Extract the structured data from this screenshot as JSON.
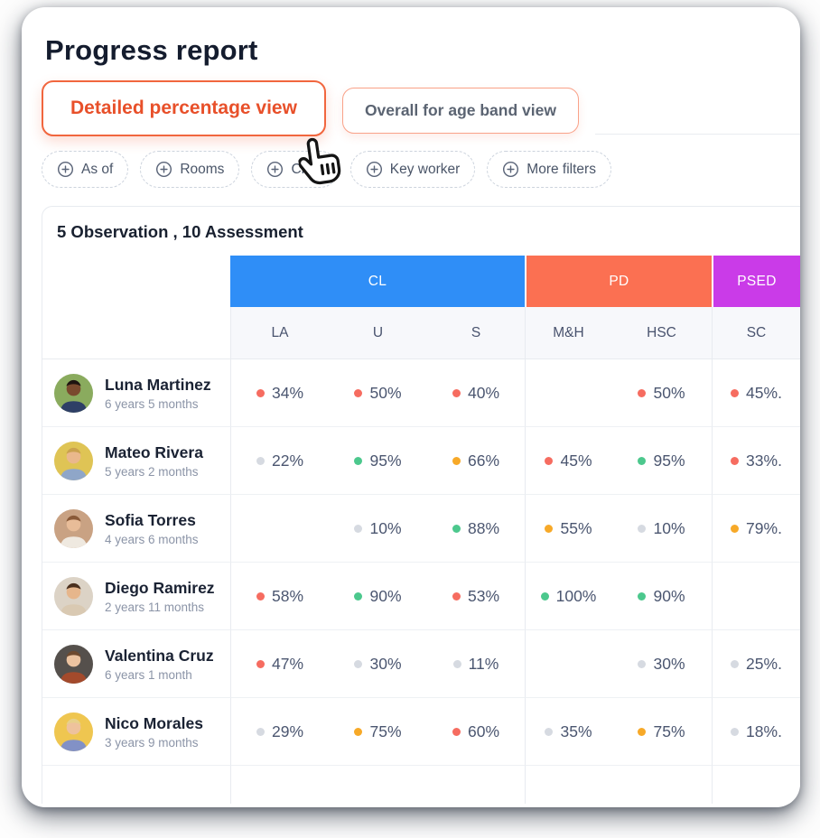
{
  "page": {
    "title": "Progress report"
  },
  "tabs": [
    {
      "label": "Detailed percentage view",
      "active": true
    },
    {
      "label": "Overall for age band view",
      "active": false
    }
  ],
  "filters": [
    {
      "label": "As of",
      "icon": "plus-circle-icon"
    },
    {
      "label": "Rooms",
      "icon": "plus-circle-icon"
    },
    {
      "label": "Child",
      "icon": "plus-circle-icon"
    },
    {
      "label": "Key worker",
      "icon": "plus-circle-icon"
    },
    {
      "label": "More filters",
      "icon": "plus-circle-icon"
    }
  ],
  "cursor": {
    "icon": "hand-pointer-icon"
  },
  "table": {
    "summary": "5 Observation , 10 Assessment",
    "groups": [
      {
        "label": "CL",
        "color": "#2f8ef7",
        "columns": [
          "LA",
          "U",
          "S"
        ]
      },
      {
        "label": "PD",
        "color": "#fb7052",
        "columns": [
          "M&H",
          "HSC"
        ]
      },
      {
        "label": "PSED",
        "color": "#ca3be8",
        "columns": [
          "SC"
        ]
      }
    ],
    "dot_colors": {
      "red": "#f66c60",
      "green": "#4cc88d",
      "amber": "#f7a928",
      "gray": "#d6dae1"
    },
    "rows": [
      {
        "name": "Luna Martinez",
        "age": "6 years 5 months",
        "avatar": {
          "bg": "#8aab5e",
          "skin": "#7a4a2e",
          "shirt": "#2e3f66",
          "hair": "#1e1410"
        },
        "cells": [
          {
            "dot": "red",
            "value": "34%"
          },
          {
            "dot": "red",
            "value": "50%"
          },
          {
            "dot": "red",
            "value": "40%"
          },
          null,
          {
            "dot": "red",
            "value": "50%"
          },
          {
            "dot": "red",
            "value": "45%."
          }
        ]
      },
      {
        "name": "Mateo Rivera",
        "age": "5 years 2 months",
        "avatar": {
          "bg": "#dfc455",
          "skin": "#eab88c",
          "shirt": "#8fa6c8",
          "hair": "#caa24e"
        },
        "cells": [
          {
            "dot": "gray",
            "value": "22%"
          },
          {
            "dot": "green",
            "value": "95%"
          },
          {
            "dot": "amber",
            "value": "66%"
          },
          {
            "dot": "red",
            "value": "45%"
          },
          {
            "dot": "green",
            "value": "95%"
          },
          {
            "dot": "red",
            "value": "33%."
          }
        ]
      },
      {
        "name": "Sofia Torres",
        "age": "4 years 6 months",
        "avatar": {
          "bg": "#c9a283",
          "skin": "#e8bc98",
          "shirt": "#efe9e0",
          "hair": "#8a5a38"
        },
        "cells": [
          null,
          {
            "dot": "gray",
            "value": "10%"
          },
          {
            "dot": "green",
            "value": "88%"
          },
          {
            "dot": "amber",
            "value": "55%"
          },
          {
            "dot": "gray",
            "value": "10%"
          },
          {
            "dot": "amber",
            "value": "79%."
          }
        ]
      },
      {
        "name": "Diego Ramirez",
        "age": "2 years 11 months",
        "avatar": {
          "bg": "#dcd3c6",
          "skin": "#e6b68c",
          "shirt": "#d9c9b2",
          "hair": "#4a2f1d"
        },
        "cells": [
          {
            "dot": "red",
            "value": "58%"
          },
          {
            "dot": "green",
            "value": "90%"
          },
          {
            "dot": "red",
            "value": "53%"
          },
          {
            "dot": "green",
            "value": "100%"
          },
          {
            "dot": "green",
            "value": "90%"
          },
          null
        ]
      },
      {
        "name": "Valentina Cruz",
        "age": "6 years 1 month",
        "avatar": {
          "bg": "#55504c",
          "skin": "#ecc3a0",
          "shirt": "#a34a2c",
          "hair": "#6e4a2f"
        },
        "cells": [
          {
            "dot": "red",
            "value": "47%"
          },
          {
            "dot": "gray",
            "value": "30%"
          },
          {
            "dot": "gray",
            "value": "11%"
          },
          null,
          {
            "dot": "gray",
            "value": "30%"
          },
          {
            "dot": "gray",
            "value": "25%."
          }
        ]
      },
      {
        "name": "Nico Morales",
        "age": "3 years 9 months",
        "avatar": {
          "bg": "#efc650",
          "skin": "#eec29c",
          "shirt": "#8291c6",
          "hair": "#e7d08a"
        },
        "cells": [
          {
            "dot": "gray",
            "value": "29%"
          },
          {
            "dot": "amber",
            "value": "75%"
          },
          {
            "dot": "red",
            "value": "60%"
          },
          {
            "dot": "gray",
            "value": "35%"
          },
          {
            "dot": "amber",
            "value": "75%"
          },
          {
            "dot": "gray",
            "value": "18%."
          }
        ]
      }
    ]
  }
}
